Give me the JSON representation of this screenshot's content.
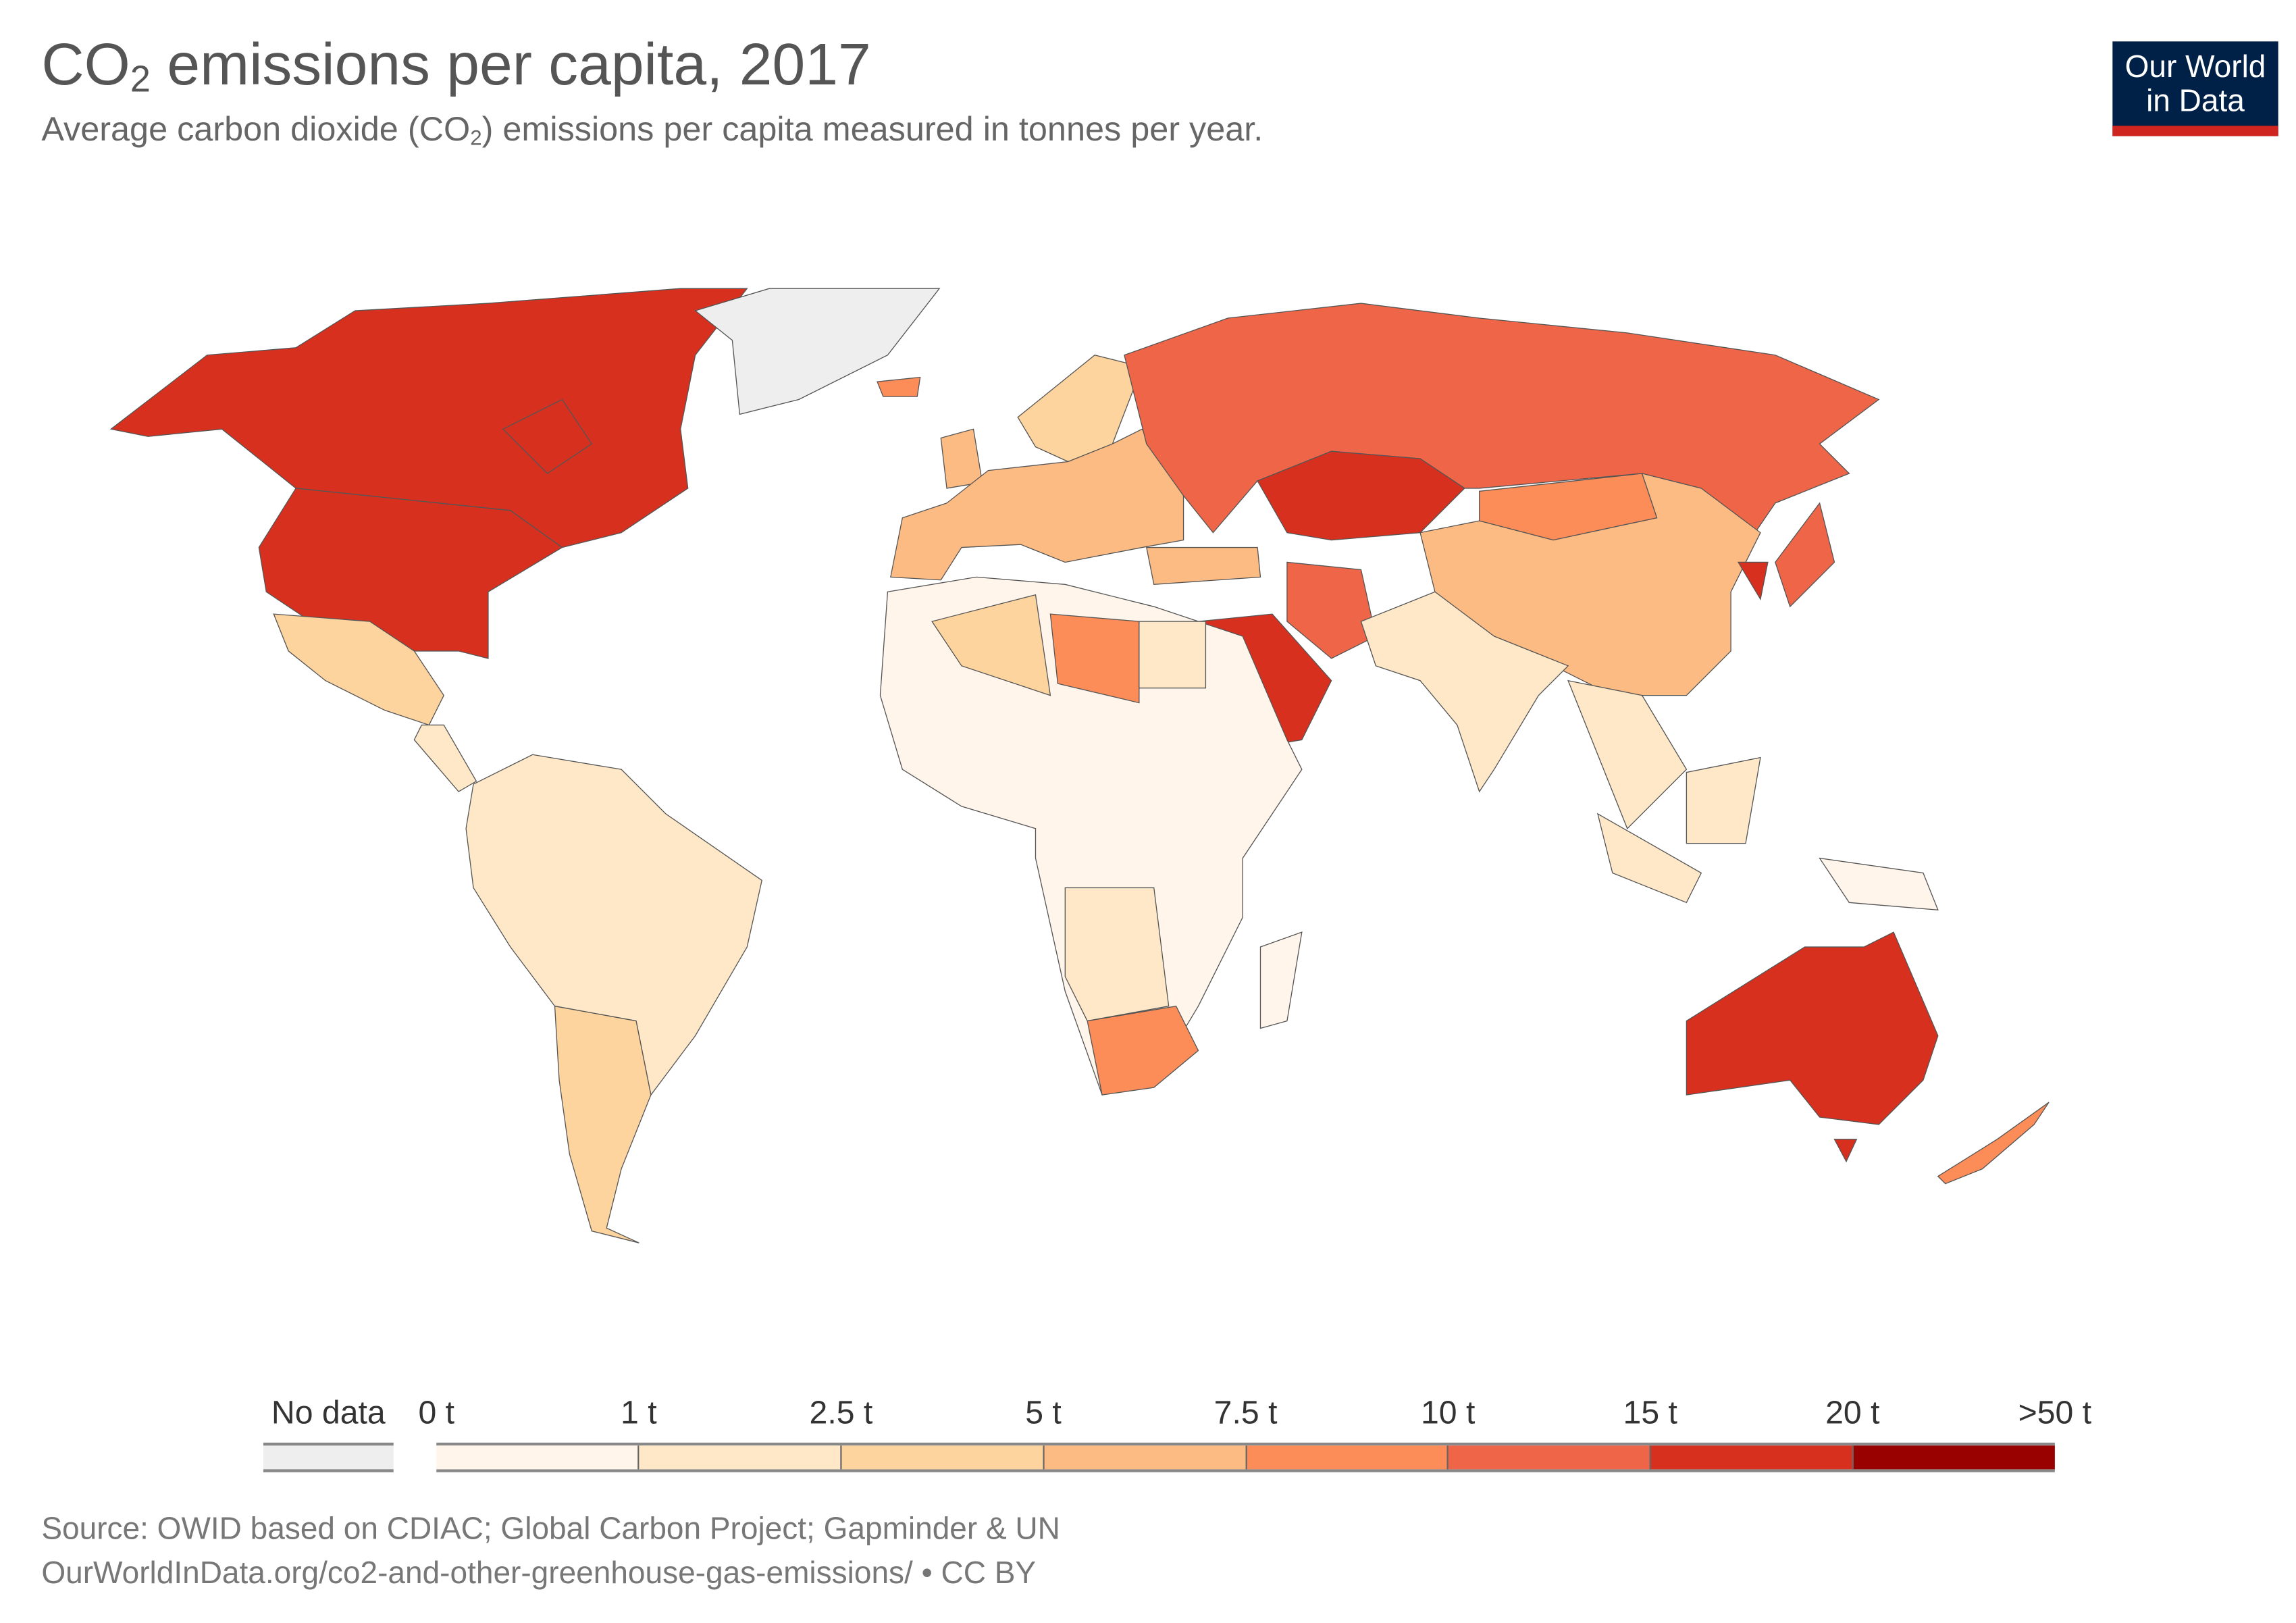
{
  "header": {
    "title_main": "CO",
    "title_sub": "2",
    "title_rest": " emissions per capita, 2017",
    "subtitle_main": "Average carbon dioxide (CO",
    "subtitle_sub": "2",
    "subtitle_rest": ") emissions per capita measured in tonnes per year."
  },
  "logo": {
    "line1": "Our World",
    "line2": "in Data",
    "bg": "#002147",
    "accent": "#ce261e"
  },
  "legend": {
    "no_data_label": "No data",
    "no_data_color": "#eeeeee",
    "labels": [
      "0 t",
      "1 t",
      "2.5 t",
      "5 t",
      "7.5 t",
      "10 t",
      "15 t",
      "20 t",
      ">50 t"
    ],
    "bins": [
      {
        "range": "0-1 t",
        "color": "#fff5eb"
      },
      {
        "range": "1-2.5 t",
        "color": "#fee8c8"
      },
      {
        "range": "2.5-5 t",
        "color": "#fdd49e"
      },
      {
        "range": "5-7.5 t",
        "color": "#fdbb84"
      },
      {
        "range": "7.5-10 t",
        "color": "#fc8d59"
      },
      {
        "range": "10-15 t",
        "color": "#ef6548"
      },
      {
        "range": "15-20 t",
        "color": "#d7301f"
      },
      {
        "range": ">20 t",
        "color": "#990000"
      }
    ]
  },
  "chart_data": {
    "type": "choropleth",
    "title": "CO2 emissions per capita, 2017",
    "unit": "tonnes per year",
    "regions": {
      "Canada": 6,
      "United States": 6,
      "Greenland": -1,
      "Iceland": 4,
      "Mexico": 2,
      "Central America": 1,
      "South America": 1,
      "Argentina & Chile": 2,
      "Europe": 3,
      "Scandinavia": 2,
      "United Kingdom": 3,
      "Russia": 5,
      "Kazakhstan": 6,
      "Mongolia": 4,
      "China": 3,
      "India": 1,
      "Turkey": 3,
      "Iran": 5,
      "Saudi Arabia": 6,
      "Africa": 0,
      "Algeria": 2,
      "Libya": 4,
      "Egypt": 1,
      "Southern Africa": 1,
      "South Africa": 4,
      "Madagascar": 0,
      "Southeast Asia": 1,
      "Indonesia": 1,
      "Borneo": 1,
      "Papua New Guinea": 0,
      "Japan": 5,
      "South Korea": 6,
      "Australia": 6,
      "New Zealand": 4
    }
  },
  "footer": {
    "source": "Source: OWID based on CDIAC; Global Carbon Project; Gapminder & UN",
    "url": "OurWorldInData.org/co2-and-other-greenhouse-gas-emissions/ • CC BY"
  }
}
